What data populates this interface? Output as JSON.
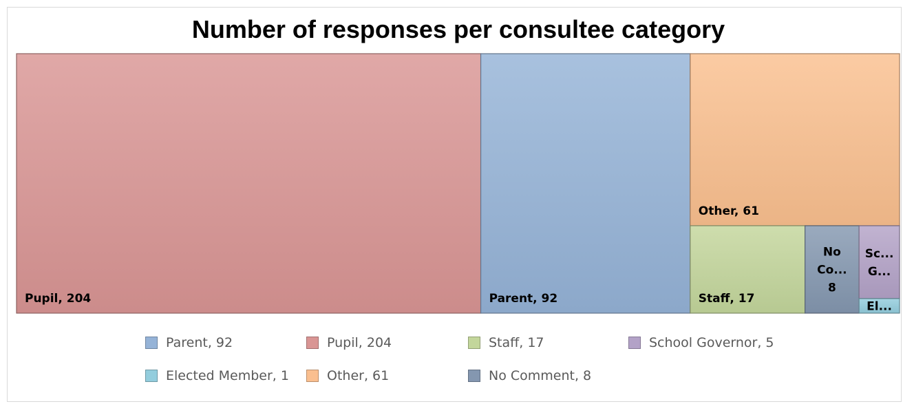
{
  "chart_data": {
    "type": "treemap",
    "title": "Number of responses per consultee category",
    "items": [
      {
        "name": "Pupil",
        "value": 204,
        "label": "Pupil, 204",
        "color": "#d99594"
      },
      {
        "name": "Parent",
        "value": 92,
        "label": "Parent, 92",
        "color": "#95b3d7"
      },
      {
        "name": "Other",
        "value": 61,
        "label": "Other, 61",
        "color": "#fabf8f"
      },
      {
        "name": "Staff",
        "value": 17,
        "label": "Staff, 17",
        "color": "#c3d69b"
      },
      {
        "name": "No Comment",
        "value": 8,
        "label": "No Co... 8",
        "color": "#8497b0"
      },
      {
        "name": "School Governor",
        "value": 5,
        "label": "Sc... G...",
        "color": "#b3a2c7"
      },
      {
        "name": "Elected Member",
        "value": 1,
        "label": "El...",
        "color": "#93cddd"
      }
    ],
    "legend": {
      "placement": "bottom",
      "entries": [
        {
          "text": "Parent, 92",
          "color": "#95b3d7"
        },
        {
          "text": "Pupil, 204",
          "color": "#d99594"
        },
        {
          "text": "Staff, 17",
          "color": "#c3d69b"
        },
        {
          "text": "School Governor, 5",
          "color": "#b3a2c7"
        },
        {
          "text": "Elected Member, 1",
          "color": "#93cddd"
        },
        {
          "text": "Other, 61",
          "color": "#fabf8f"
        },
        {
          "text": "No Comment, 8",
          "color": "#8497b0"
        }
      ]
    }
  }
}
